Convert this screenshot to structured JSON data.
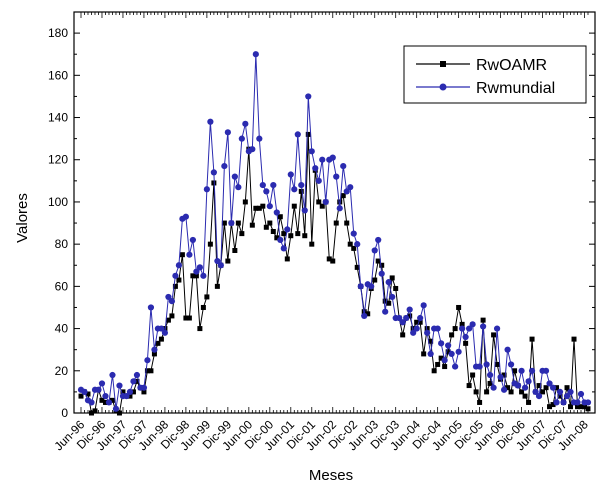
{
  "chart_data": {
    "type": "line",
    "xlabel": "Meses",
    "ylabel": "Valores",
    "ylim": [
      0,
      190
    ],
    "ytick_values": [
      0,
      20,
      40,
      60,
      80,
      100,
      120,
      140,
      160,
      180
    ],
    "grid": false,
    "legend_position": "top-right",
    "x_month_count": 146,
    "x_ticks": [
      {
        "label": "Jun-96",
        "index": 0
      },
      {
        "label": "Dic-96",
        "index": 6
      },
      {
        "label": "Jun-97",
        "index": 12
      },
      {
        "label": "Dic-97",
        "index": 18
      },
      {
        "label": "Jun-98",
        "index": 24
      },
      {
        "label": "Dic-98",
        "index": 30
      },
      {
        "label": "Jun-99",
        "index": 36
      },
      {
        "label": "Dic-99",
        "index": 42
      },
      {
        "label": "Jun-00",
        "index": 48
      },
      {
        "label": "Dic-00",
        "index": 54
      },
      {
        "label": "Jun-01",
        "index": 60
      },
      {
        "label": "Dic-01",
        "index": 66
      },
      {
        "label": "Jun-02",
        "index": 72
      },
      {
        "label": "Dic-02",
        "index": 78
      },
      {
        "label": "Jun-03",
        "index": 84
      },
      {
        "label": "Dic-03",
        "index": 90
      },
      {
        "label": "Jun-04",
        "index": 96
      },
      {
        "label": "Dic-04",
        "index": 102
      },
      {
        "label": "Jun-05",
        "index": 108
      },
      {
        "label": "Dic-05",
        "index": 114
      },
      {
        "label": "Jun-06",
        "index": 120
      },
      {
        "label": "Dic-06",
        "index": 126
      },
      {
        "label": "Jun-07",
        "index": 132
      },
      {
        "label": "Dic-07",
        "index": 138
      },
      {
        "label": "Jun-08",
        "index": 144
      }
    ],
    "series": [
      {
        "name": "RwOAMR",
        "color": "#000000",
        "marker": "square",
        "values": [
          8,
          10,
          9,
          0,
          1,
          11,
          6,
          5,
          5,
          6,
          1,
          0,
          10,
          8,
          8,
          10,
          15,
          12,
          10,
          20,
          20,
          28,
          33,
          35,
          40,
          44,
          46,
          60,
          63,
          75,
          45,
          45,
          65,
          65,
          40,
          50,
          55,
          80,
          109,
          60,
          70,
          90,
          72,
          90,
          77,
          90,
          85,
          100,
          125,
          89,
          97,
          97,
          98,
          88,
          90,
          86,
          83,
          93,
          85,
          73,
          84,
          98,
          85,
          105,
          84,
          132,
          80,
          115,
          100,
          98,
          100,
          73,
          72,
          90,
          100,
          103,
          90,
          80,
          78,
          69,
          60,
          48,
          47,
          59,
          63,
          72,
          70,
          53,
          52,
          64,
          59,
          45,
          37,
          45,
          46,
          40,
          43,
          43,
          28,
          40,
          34,
          20,
          23,
          26,
          22,
          29,
          37,
          40,
          50,
          42,
          33,
          13,
          18,
          10,
          5,
          44,
          10,
          14,
          37,
          23,
          16,
          18,
          12,
          10,
          20,
          13,
          10,
          8,
          5,
          35,
          10,
          13,
          10,
          12,
          3,
          4,
          12,
          8,
          5,
          12,
          3,
          35,
          3,
          3,
          3,
          2
        ],
        "y_labels_only": false
      },
      {
        "name": "Rwmundial",
        "color": "#2b2bb0",
        "marker": "circle",
        "values": [
          11,
          10,
          6,
          5,
          11,
          11,
          14,
          8,
          5,
          18,
          2,
          13,
          8,
          8,
          10,
          15,
          18,
          12,
          12,
          25,
          50,
          30,
          40,
          40,
          38,
          55,
          53,
          65,
          70,
          92,
          93,
          75,
          82,
          67,
          69,
          65,
          106,
          138,
          114,
          72,
          70,
          117,
          133,
          90,
          112,
          107,
          130,
          137,
          124,
          125,
          170,
          130,
          108,
          105,
          98,
          108,
          95,
          82,
          78,
          87,
          113,
          106,
          132,
          108,
          96,
          150,
          124,
          116,
          110,
          120,
          100,
          120,
          121,
          112,
          97,
          117,
          105,
          107,
          85,
          80,
          60,
          46,
          61,
          60,
          77,
          82,
          66,
          48,
          62,
          55,
          45,
          45,
          43,
          45,
          49,
          38,
          40,
          45,
          51,
          38,
          28,
          40,
          40,
          33,
          25,
          32,
          28,
          22,
          29,
          40,
          36,
          40,
          42,
          22,
          22,
          41,
          23,
          18,
          12,
          40,
          17,
          11,
          30,
          23,
          14,
          13,
          20,
          12,
          15,
          20,
          10,
          8,
          20,
          20,
          14,
          12,
          5,
          10,
          5,
          8,
          10,
          5,
          5,
          9,
          5,
          5
        ]
      }
    ]
  }
}
